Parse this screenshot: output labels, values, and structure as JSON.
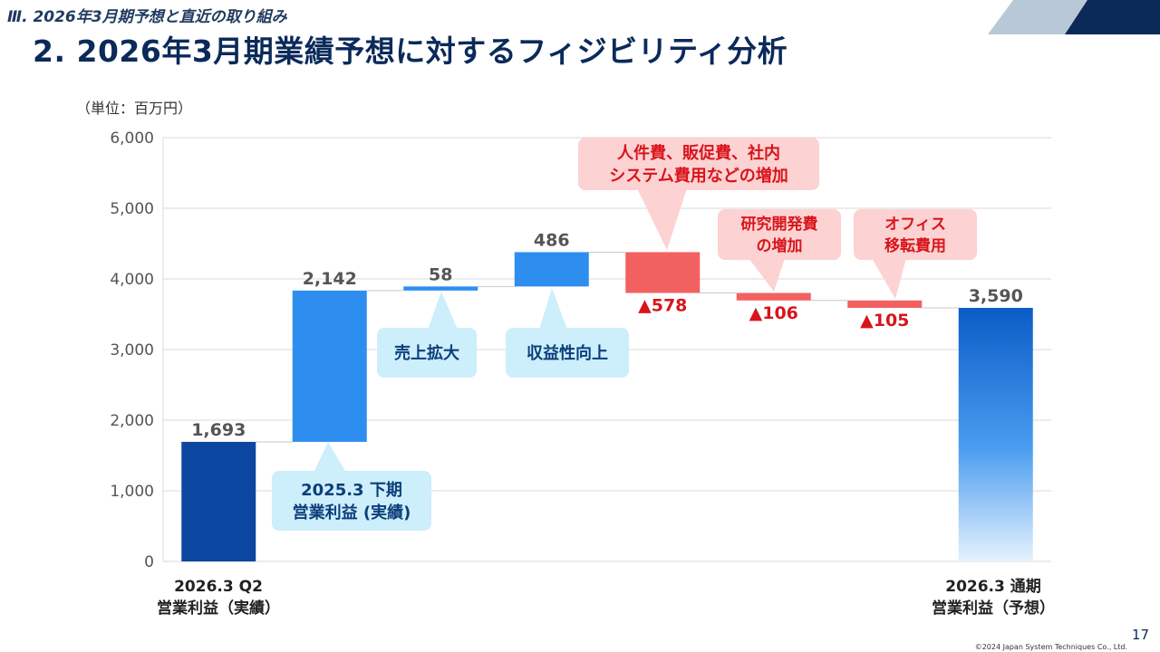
{
  "header": {
    "section": "Ⅲ.  2026年3月期予想と直近の取り組み",
    "title": "2. 2026年3月期業績予想に対するフィジビリティ分析"
  },
  "unit_label": "（単位：百万円）",
  "chart_data": {
    "type": "waterfall",
    "ylim": [
      0,
      6000
    ],
    "yticks": [
      "0",
      "1,000",
      "2,000",
      "3,000",
      "4,000",
      "5,000",
      "6,000"
    ],
    "grid": true,
    "steps": [
      {
        "label": "2026.3 Q2 営業利益（実績）",
        "kind": "total",
        "value": 1693,
        "value_label": "1,693",
        "color": "#0b47a1"
      },
      {
        "label": "2025.3 下期 営業利益 (実績)",
        "kind": "increase",
        "value": 2142,
        "value_label": "2,142",
        "color": "#2e8ef0"
      },
      {
        "label": "売上拡大",
        "kind": "increase",
        "value": 58,
        "value_label": "58",
        "color": "#2e8ef0"
      },
      {
        "label": "収益性向上",
        "kind": "increase",
        "value": 486,
        "value_label": "486",
        "color": "#2e8ef0"
      },
      {
        "label": "人件費、販促費、社内システム費用などの増加",
        "kind": "decrease",
        "value": -578,
        "value_label": "▲578",
        "color": "#f26161"
      },
      {
        "label": "研究開発費の増加",
        "kind": "decrease",
        "value": -106,
        "value_label": "▲106",
        "color": "#f26161"
      },
      {
        "label": "オフィス移転費用",
        "kind": "decrease",
        "value": -105,
        "value_label": "▲105",
        "color": "#f26161"
      },
      {
        "label": "2026.3 通期 営業利益（予想）",
        "kind": "total",
        "value": 3590,
        "value_label": "3,590",
        "color": "#0b5cc6"
      }
    ]
  },
  "callouts": {
    "h2": [
      "2025.3 下期",
      "営業利益 (実績)"
    ],
    "expand": [
      "売上拡大"
    ],
    "profit": [
      "収益性向上"
    ],
    "cost": [
      "人件費、販促費、社内",
      "システム費用などの増加"
    ],
    "rnd": [
      "研究開発費",
      "の増加"
    ],
    "office": [
      "オフィス",
      "移転費用"
    ]
  },
  "categories": {
    "first": [
      "2026.3 Q2",
      "営業利益（実績）"
    ],
    "last": [
      "2026.3 通期",
      "営業利益（予想）"
    ]
  },
  "footer": {
    "page": "17",
    "copyright": "©2024 Japan System Techniques Co., Ltd."
  }
}
